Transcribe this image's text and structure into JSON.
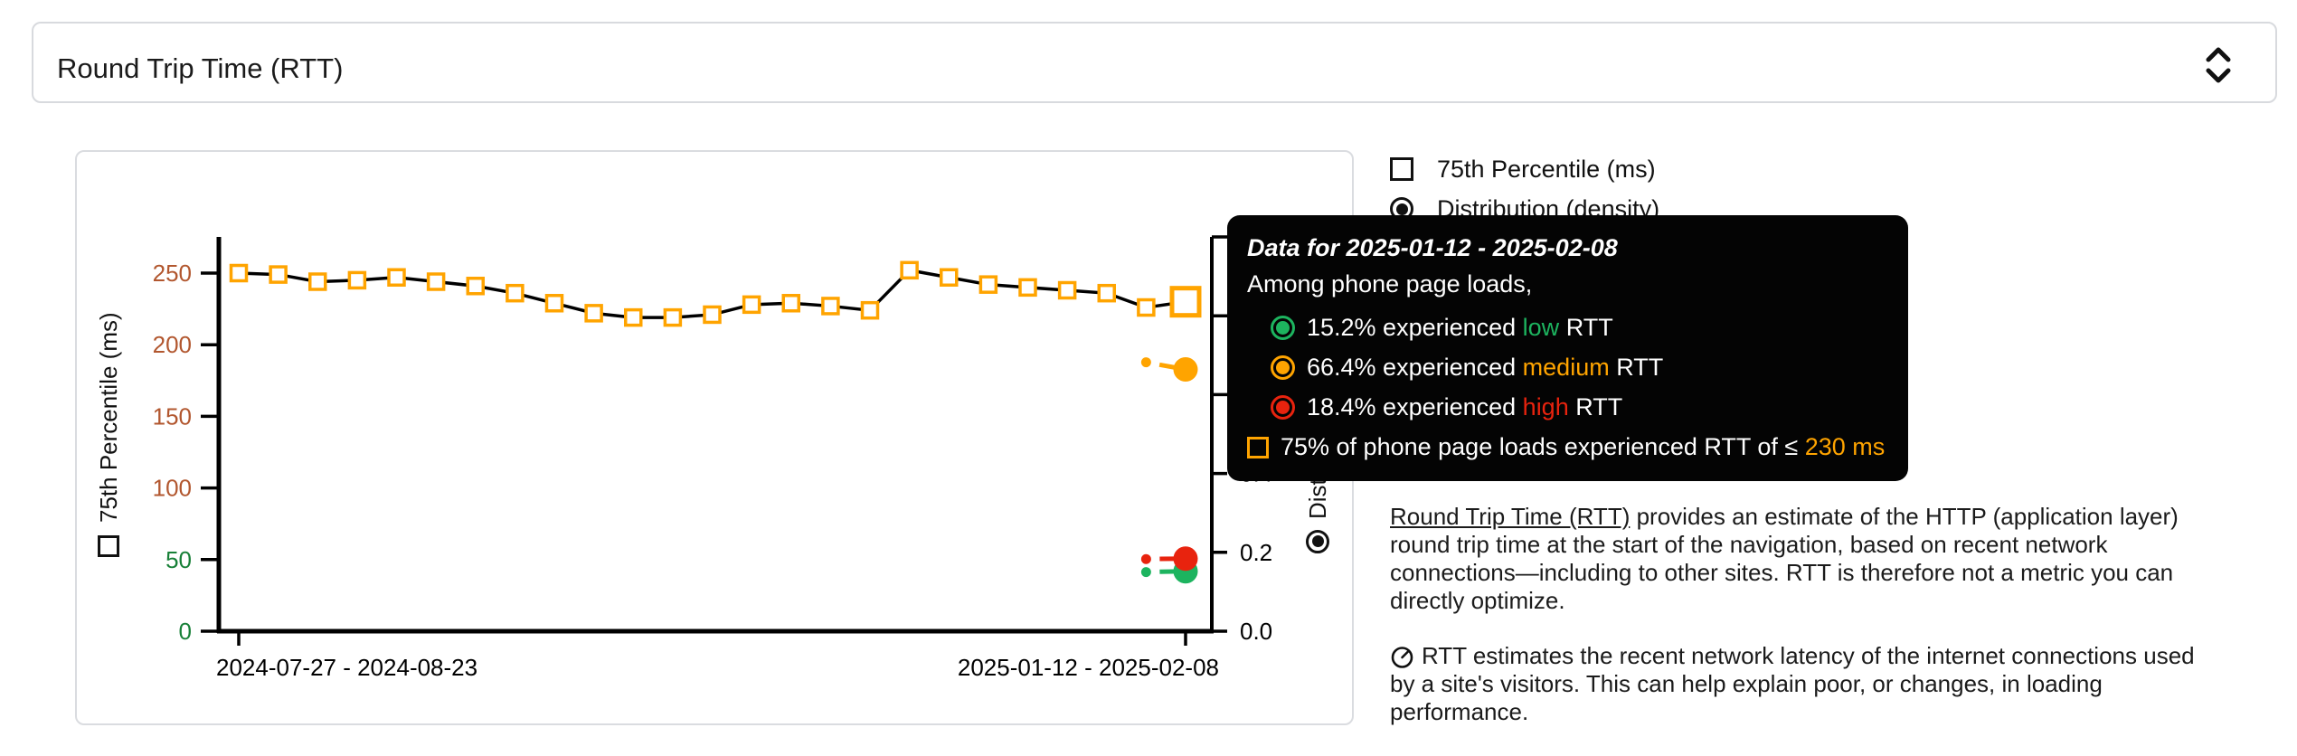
{
  "metric_selector": {
    "label": "Round Trip Time (RTT)",
    "expand_icon": "unfold-more"
  },
  "legend": {
    "items": [
      {
        "type": "checkbox",
        "checked": false,
        "label": "75th Percentile (ms)"
      },
      {
        "type": "radio",
        "checked": true,
        "label": "Distribution (density)"
      }
    ]
  },
  "tooltip": {
    "title": "Data for 2025-01-12 - 2025-02-08",
    "subtitle": "Among phone page loads,",
    "rows": [
      {
        "marker": "circle",
        "color": "#1db45f",
        "prefix": "15.2% experienced ",
        "highlight": "low",
        "suffix": " RTT"
      },
      {
        "marker": "circle",
        "color": "#ffa400",
        "prefix": "66.4% experienced ",
        "highlight": "medium",
        "suffix": " RTT"
      },
      {
        "marker": "circle",
        "color": "#e8230e",
        "prefix": "18.4% experienced ",
        "highlight": "high",
        "suffix": " RTT"
      }
    ],
    "footer": {
      "marker": "square",
      "color": "#ffa400",
      "prefix": "75% of phone page loads experienced RTT of ≤ ",
      "highlight": "230 ms",
      "suffix": ""
    }
  },
  "chart_data": {
    "type": "line",
    "title": "Round Trip Time (RTT)",
    "x_tick_labels": [
      "2024-07-27 - 2024-08-23",
      "2025-01-12 - 2025-02-08"
    ],
    "left_axis": {
      "label": "75th Percentile (ms)",
      "range": [
        0,
        275
      ],
      "ticks": [
        0,
        50,
        100,
        150,
        200,
        250
      ],
      "tick_colors": [
        "#188038",
        "#188038",
        "#b2572f",
        "#b2572f",
        "#b2572f",
        "#b2572f"
      ]
    },
    "right_axis": {
      "label": "Distribution (density)",
      "range": [
        0,
        1
      ],
      "ticks": [
        0,
        0.2,
        0.4,
        0.6,
        0.8,
        1
      ],
      "visible_tick_labels": [
        "0.0",
        "0.2"
      ]
    },
    "percentile_series": {
      "name": "75th Percentile (ms)",
      "marker": "square",
      "marker_color": "#ffa400",
      "line_color": "#000000",
      "values_ms": [
        250,
        249,
        244,
        245,
        247,
        244,
        241,
        236,
        229,
        222,
        219,
        219,
        221,
        228,
        229,
        227,
        224,
        252,
        247,
        242,
        240,
        238,
        236,
        226,
        230
      ],
      "highlighted_last_value_ms": 230
    },
    "density_series": [
      {
        "name": "low",
        "color": "#1db45f",
        "last_two_values": [
          0.15,
          0.152
        ]
      },
      {
        "name": "medium",
        "color": "#ffa400",
        "last_two_values": [
          0.682,
          0.664
        ]
      },
      {
        "name": "high",
        "color": "#e8230e",
        "last_two_values": [
          0.183,
          0.184
        ]
      }
    ],
    "highlighted_period": "2025-01-12 - 2025-02-08"
  },
  "description": {
    "p1_line1_link": "Round Trip Time (RTT)",
    "p1_line1_rest": " provides an estimate of the HTTP (application layer)",
    "p1_line2": "round trip time at the start of the navigation, based on recent network",
    "p1_line3": "connections—including to other sites. RTT is therefore not a metric you can",
    "p1_line4": "directly optimize.",
    "p2_line1": "RTT estimates the recent network latency of the internet connections used",
    "p2_line2": "by a site's visitors. This can help explain poor, or changes, in loading",
    "p2_line3": "performance."
  }
}
